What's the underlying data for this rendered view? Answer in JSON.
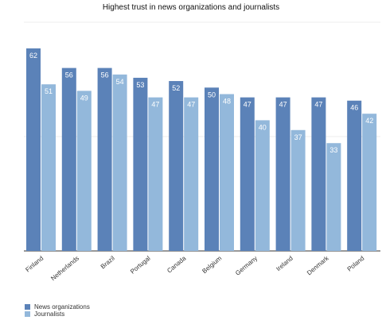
{
  "chart_data": {
    "type": "bar",
    "title": "Highest trust in news organizations and journalists",
    "xlabel": "",
    "ylabel": "",
    "ylim": [
      0,
      70
    ],
    "grid": true,
    "legend_position": "bottom-left",
    "categories": [
      "Finland",
      "Netherlands",
      "Brazil",
      "Portugal",
      "Canada",
      "Belgium",
      "Germany",
      "Ireland",
      "Denmark",
      "Poland"
    ],
    "series": [
      {
        "name": "News organizations",
        "color": "#5b82b8",
        "values": [
          62,
          56,
          56,
          53,
          52,
          50,
          47,
          47,
          47,
          46
        ]
      },
      {
        "name": "Journalists",
        "color": "#93b8db",
        "values": [
          51,
          49,
          54,
          47,
          47,
          48,
          40,
          37,
          33,
          42
        ]
      }
    ]
  }
}
